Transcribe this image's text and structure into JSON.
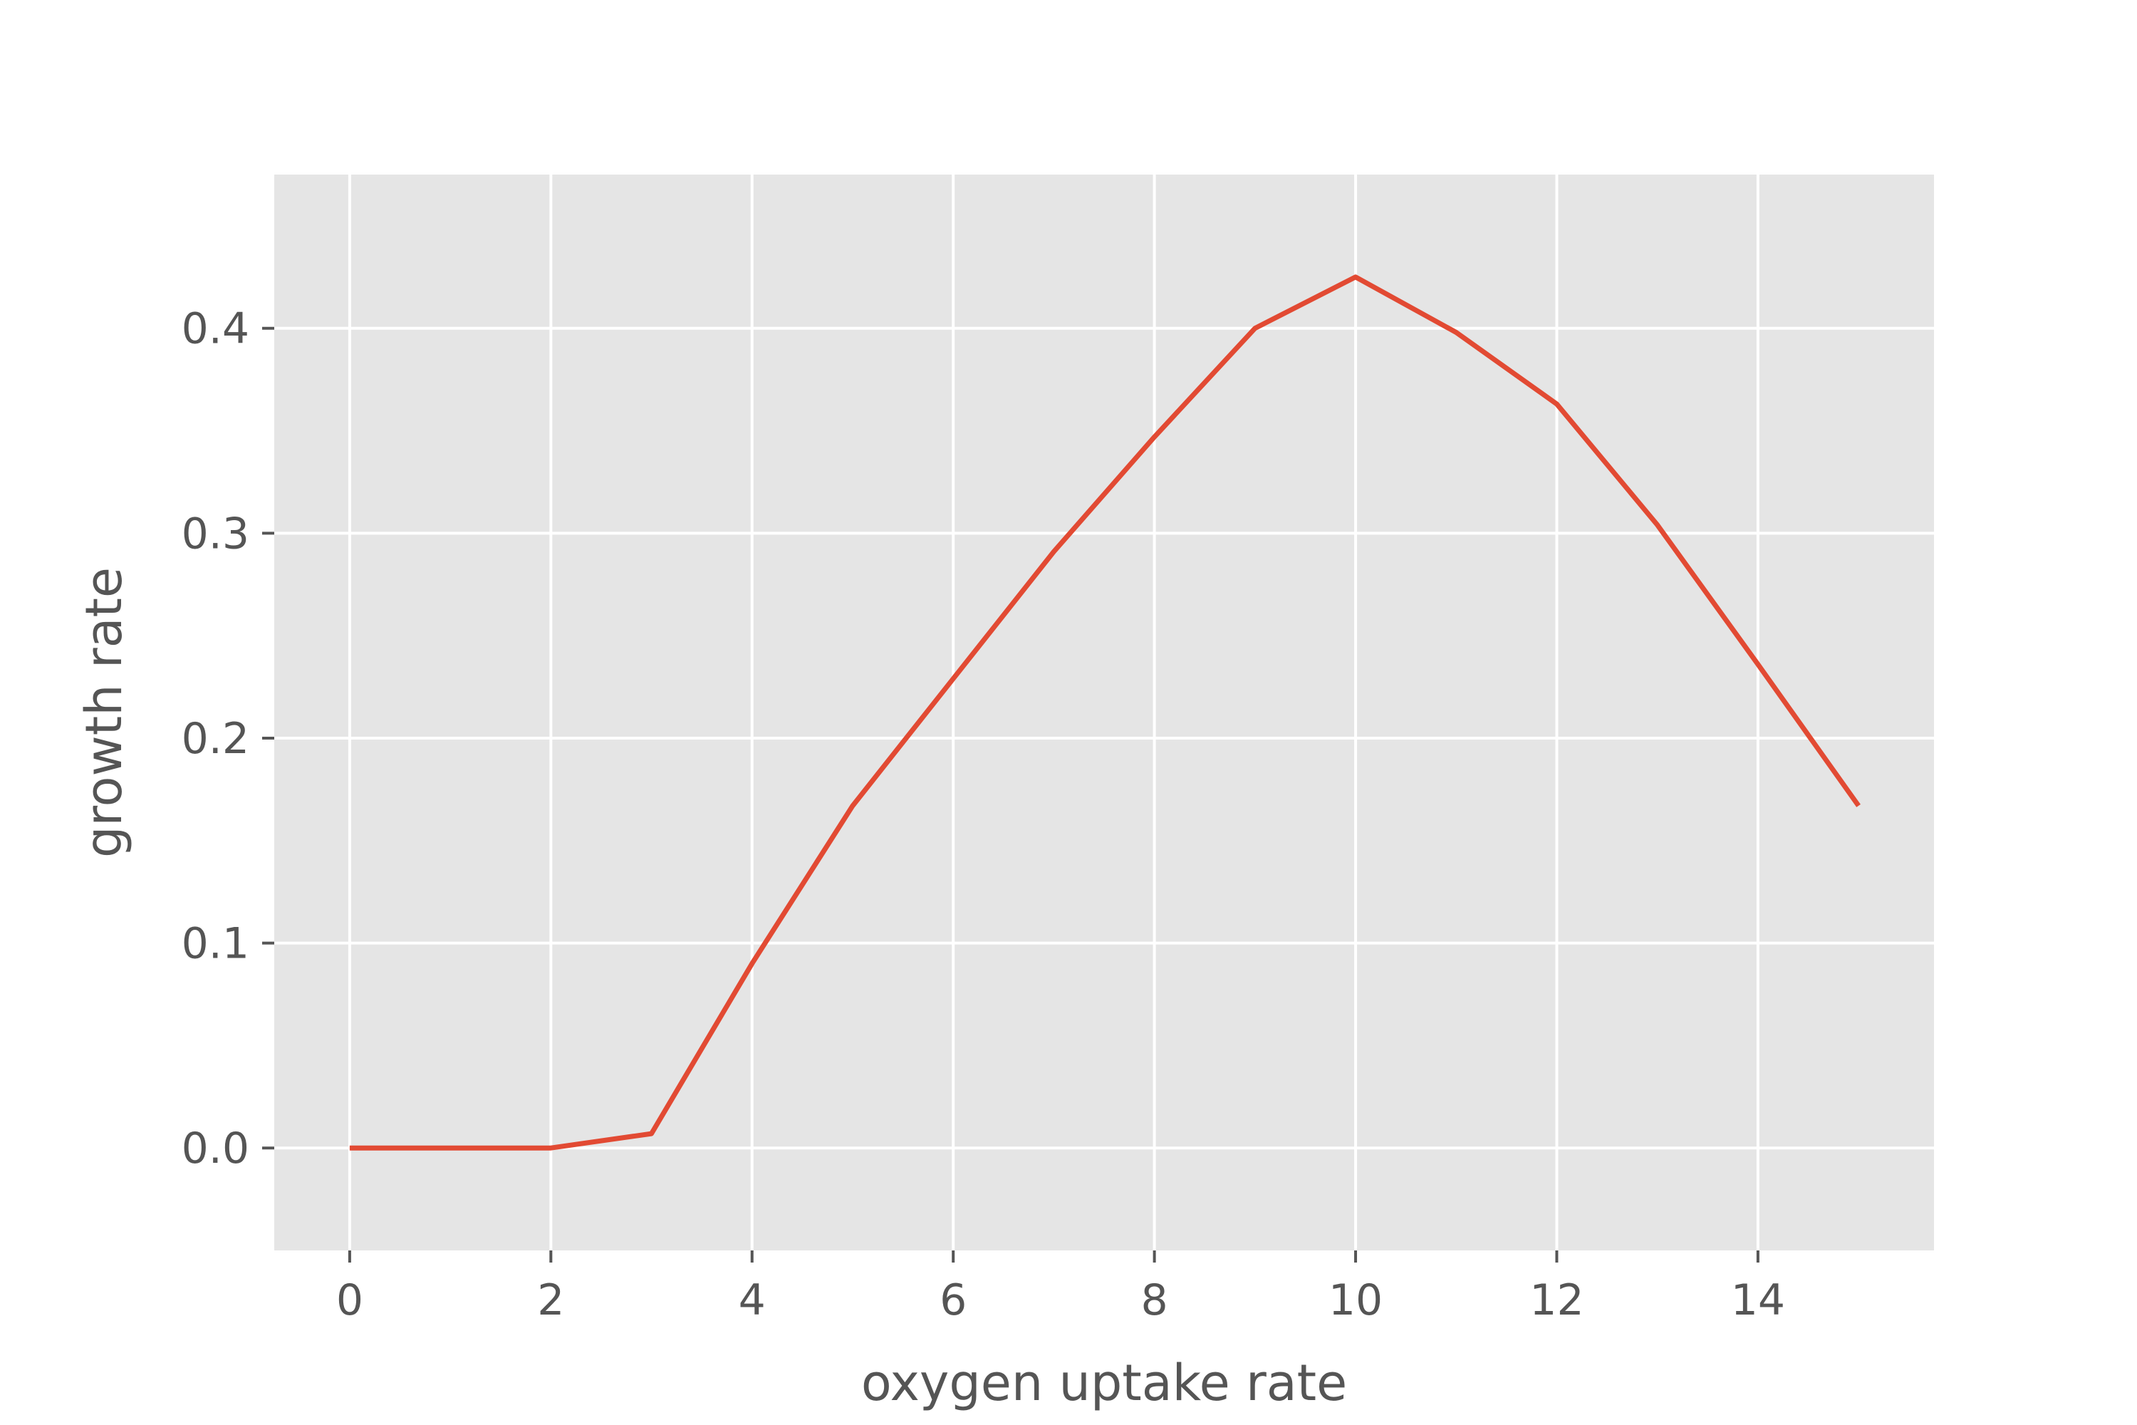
{
  "chart_data": {
    "type": "line",
    "style": "ggplot",
    "title": "",
    "xlabel": "oxygen uptake rate",
    "ylabel": "growth rate",
    "xlim": [
      -0.75,
      15.75
    ],
    "ylim": [
      -0.05,
      0.475
    ],
    "xticks": [
      0,
      2,
      4,
      6,
      8,
      10,
      12,
      14
    ],
    "xtick_labels": [
      "0",
      "2",
      "4",
      "6",
      "8",
      "10",
      "12",
      "14"
    ],
    "yticks": [
      0.0,
      0.1,
      0.2,
      0.3,
      0.4
    ],
    "ytick_labels": [
      "0.0",
      "0.1",
      "0.2",
      "0.3",
      "0.4"
    ],
    "grid": true,
    "colors": {
      "background": "#E5E5E5",
      "grid": "#FFFFFF",
      "line": "#E24A33",
      "text": "#555555"
    },
    "series": [
      {
        "x": [
          0,
          1,
          2,
          3,
          4,
          5,
          6,
          7,
          8,
          9,
          10,
          11,
          12,
          13,
          14,
          15
        ],
        "y": [
          0.0,
          0.0,
          0.0,
          0.007,
          0.09,
          0.167,
          0.229,
          0.291,
          0.347,
          0.4,
          0.425,
          0.398,
          0.363,
          0.304,
          0.236,
          0.167
        ]
      }
    ]
  }
}
